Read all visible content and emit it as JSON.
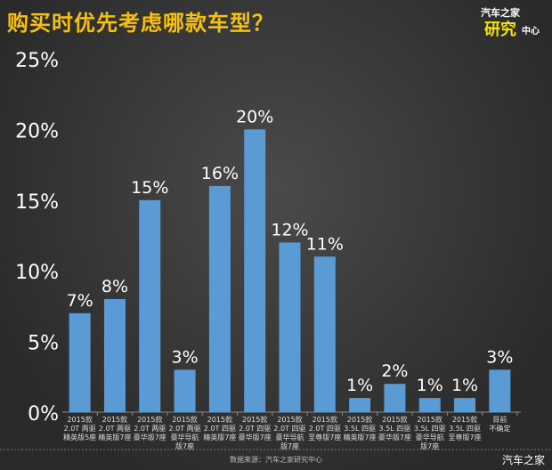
{
  "header": {
    "title": "购买时优先考虑哪款车型？",
    "logo": "汽车之家研究中心",
    "logo_line1": "汽车之家",
    "logo_line2": "研究",
    "logo_line3": "中心"
  },
  "footer": {
    "source": "数据来源：汽车之家研究中心",
    "brand": "汽车之家"
  },
  "colors": {
    "bar": "#5b9bd5",
    "title": "#f6c10a"
  },
  "chart_data": {
    "type": "bar",
    "title": "购买时优先考虑哪款车型？",
    "categories": [
      [
        "2015款",
        "2.0T 两驱",
        "精英版5座"
      ],
      [
        "2015款",
        "2.0T 两驱",
        "精英版7座"
      ],
      [
        "2015款",
        "2.0T 两驱",
        "豪华版7座"
      ],
      [
        "2015款",
        "2.0T 两驱",
        "豪华导航",
        "版7座"
      ],
      [
        "2015款",
        "2.0T 四驱",
        "精英版7座"
      ],
      [
        "2015款",
        "2.0T 四驱",
        "豪华版7座"
      ],
      [
        "2015款",
        "2.0T 四驱",
        "豪华导航",
        "版7座"
      ],
      [
        "2015款",
        "2.0T 四驱",
        "至尊版7座"
      ],
      [
        "2015款",
        "3.5L 四驱",
        "精英版7座"
      ],
      [
        "2015款",
        "3.5L 四驱",
        "豪华版7座"
      ],
      [
        "2015款",
        "3.5L 四驱",
        "豪华导航",
        "版7座"
      ],
      [
        "2015款",
        "3.5L 四驱",
        "至尊版7座"
      ],
      [
        "目前",
        "不确定"
      ]
    ],
    "values": [
      7,
      8,
      15,
      3,
      16,
      20,
      12,
      11,
      1,
      2,
      1,
      1,
      3
    ],
    "data_labels": [
      "7%",
      "8%",
      "15%",
      "3%",
      "16%",
      "20%",
      "12%",
      "11%",
      "1%",
      "2%",
      "1%",
      "1%",
      "3%"
    ],
    "yticks": [
      "0%",
      "5%",
      "10%",
      "15%",
      "20%",
      "25%"
    ],
    "ylim": [
      0,
      25
    ],
    "grid": false
  }
}
